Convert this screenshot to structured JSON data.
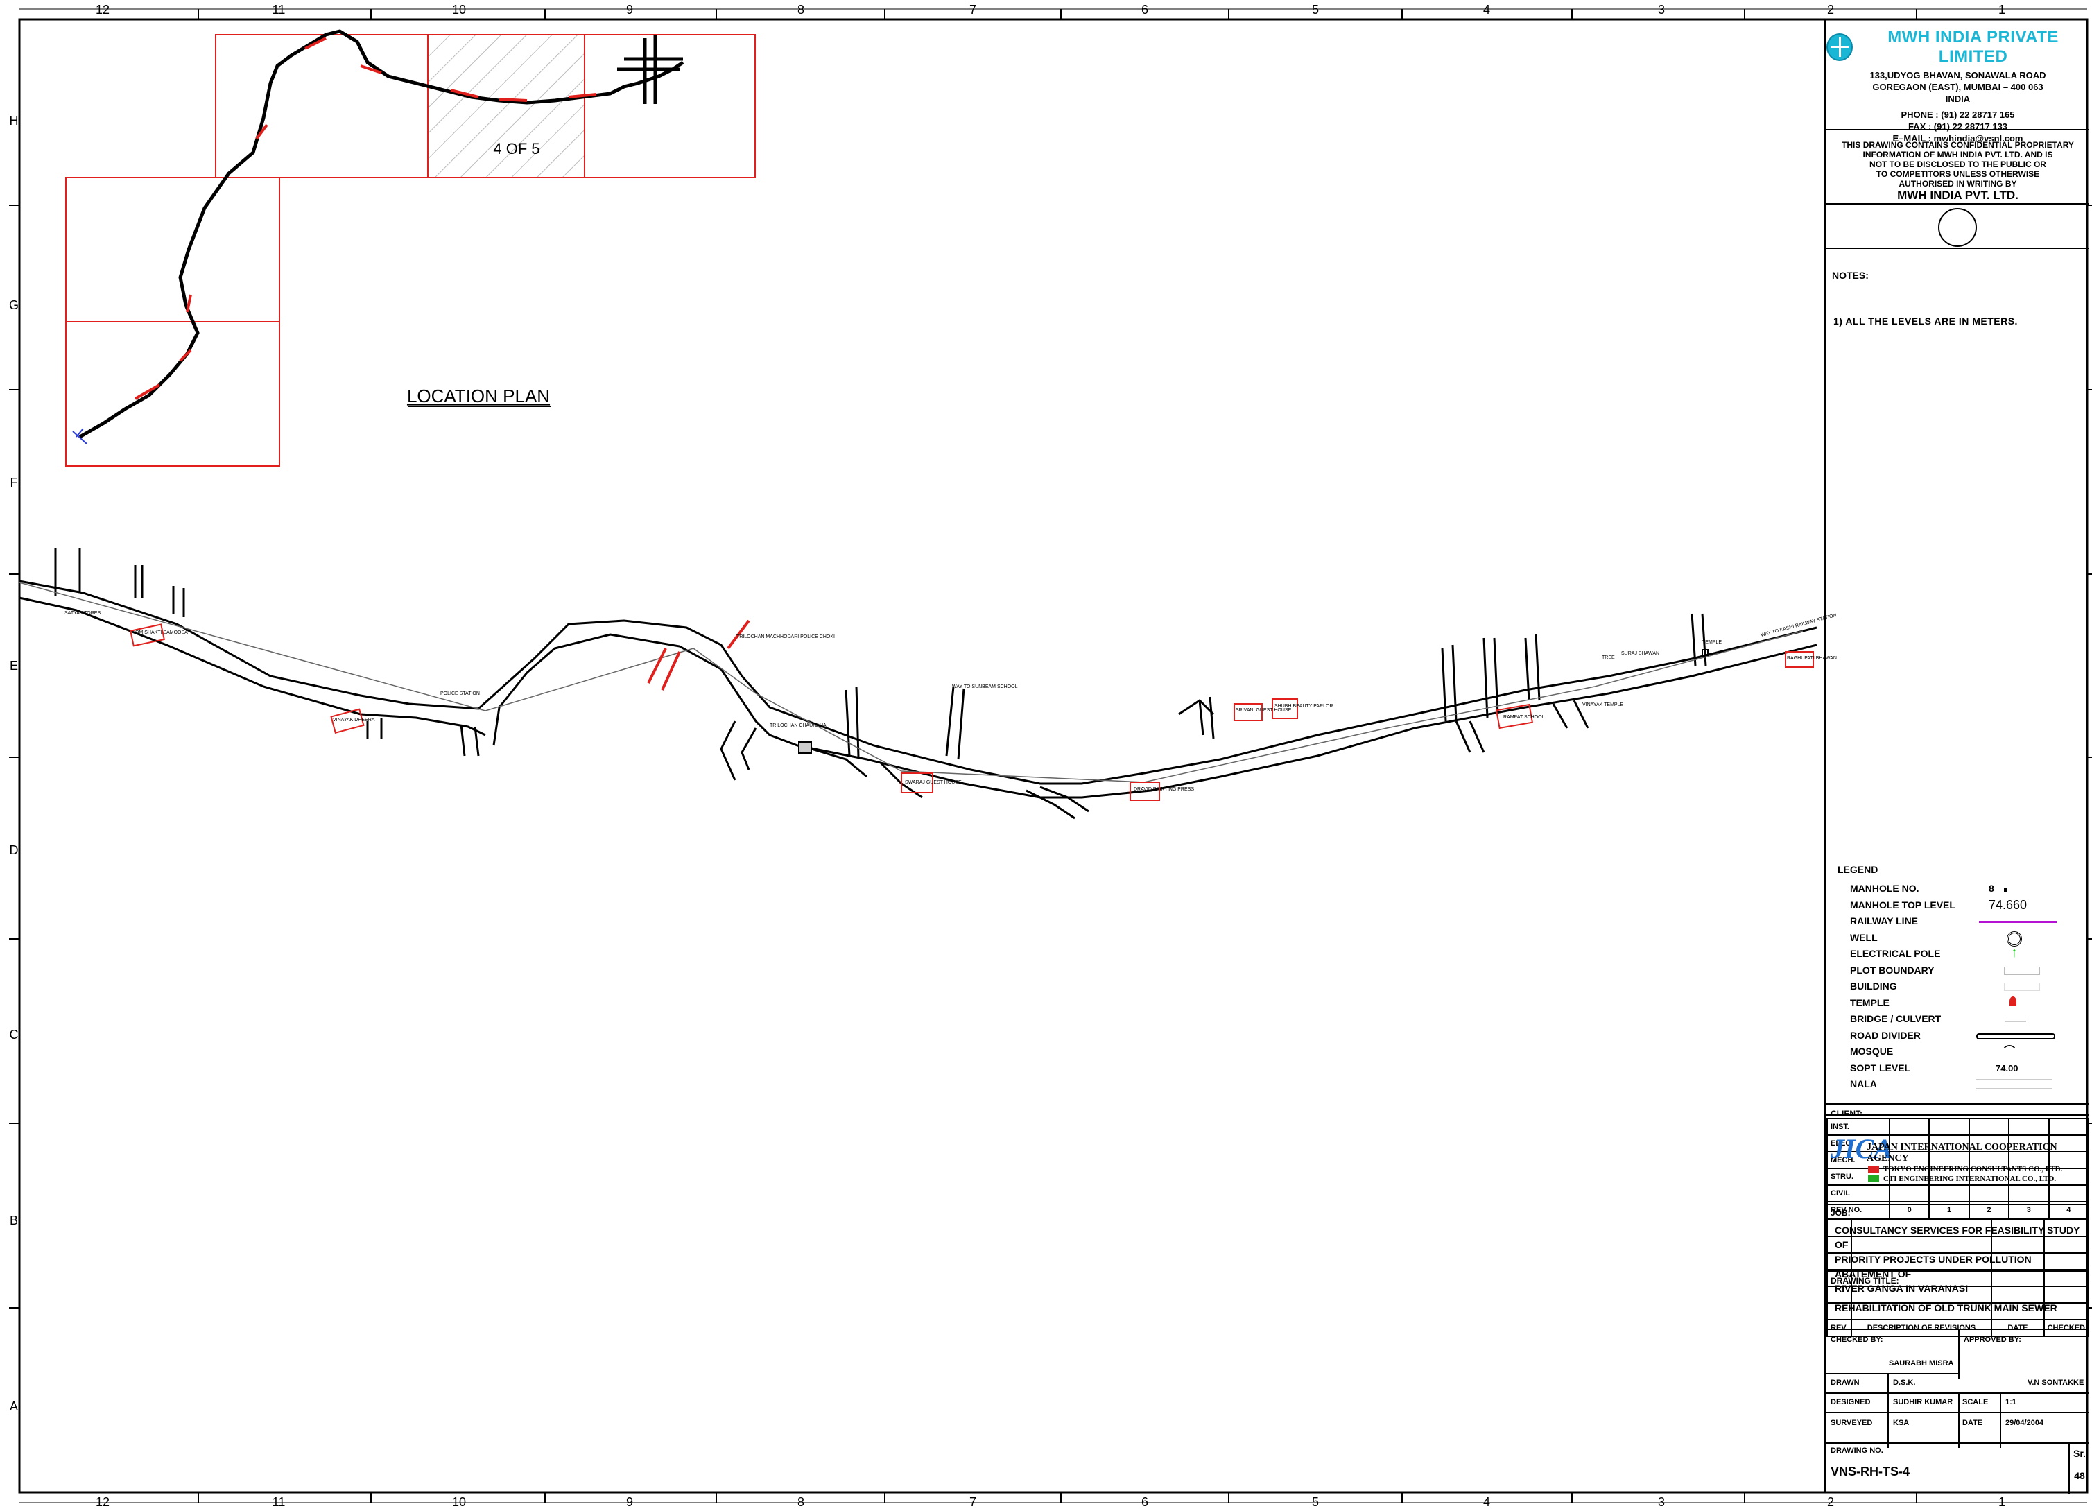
{
  "border": {
    "columns": [
      "12",
      "11",
      "10",
      "9",
      "8",
      "7",
      "6",
      "5",
      "4",
      "3",
      "2",
      "1"
    ],
    "rows": [
      "H",
      "G",
      "F",
      "E",
      "D",
      "C",
      "B",
      "A"
    ]
  },
  "location_plan": {
    "title": "LOCATION PLAN",
    "sheet_label": "4 OF 5"
  },
  "company": {
    "name": "MWH INDIA PRIVATE LIMITED",
    "address_lines": [
      "133,UDYOG BHAVAN, SONAWALA ROAD",
      "GOREGAON (EAST), MUMBAI – 400 063",
      "INDIA"
    ],
    "phone": "PHONE    : (91) 22 28717 165",
    "fax": "FAX    : (91) 22 28717 133",
    "email": "E–MAIL :  mwhindia@vsnl.com"
  },
  "confidential": {
    "lines": [
      "THIS DRAWING CONTAINS CONFIDENTIAL PROPRIETARY",
      "INFORMATION OF MWH INDIA PVT. LTD. AND IS",
      "NOT TO BE DISCLOSED TO THE PUBLIC OR",
      "TO COMPETITORS UNLESS OTHERWISE",
      "AUTHORISED IN WRITING BY"
    ],
    "company": "MWH INDIA PVT. LTD."
  },
  "notes": {
    "title": "NOTES:",
    "items": [
      "1)  ALL  THE  LEVELS  ARE  IN  METERS."
    ]
  },
  "legend": {
    "title": "LEGEND",
    "manhole_no_label": "MANHOLE  NO.",
    "manhole_no_value": "8",
    "manhole_top_label": "MANHOLE  TOP  LEVEL",
    "manhole_top_value": "74.660",
    "railway_line": "RAILWAY  LINE",
    "well": "WELL",
    "electrical_pole": "ELECTRICAL  POLE",
    "plot_boundary": "PLOT  BOUNDARY",
    "building": "BUILDING",
    "temple": "TEMPLE",
    "bridge": "BRIDGE  /  CULVERT",
    "road_divider": "ROAD  DIVIDER",
    "mosque": "MOSQUE",
    "sopt_level": "SOPT  LEVEL",
    "sopt_value": "74.00",
    "nala": "NALA"
  },
  "revisions": {
    "disciplines": [
      "INST.",
      "ELEC.",
      "MECH.",
      "STRU.",
      "CIVIL"
    ],
    "rev_no_label": "REV  NO.",
    "rev_nos": [
      "0",
      "1",
      "2",
      "3",
      "4"
    ],
    "footer": {
      "rev": "REV.",
      "description": "DESCRIPTION  OF  REVISIONS",
      "date": "DATE",
      "checked": "CHECKED"
    }
  },
  "client": {
    "label": "CLIENT:",
    "logo": "JICA",
    "agency": "JAPAN INTERNATIONAL COOPERATION AGENCY",
    "consultant1": "TOKYO ENGINEERING CONSULTANTS CO., LTD.",
    "consultant2": "CTI ENGINEERING INTERNATIONAL CO., LTD."
  },
  "job": {
    "label": "JOB:",
    "lines": [
      "CONSULTANCY SERVICES FOR FEASIBILITY STUDY OF",
      "PRIORITY PROJECTS UNDER POLLUTION ABATEMENT OF",
      "RIVER GANGA IN VARANASI"
    ]
  },
  "drawing_title": {
    "label": "DRAWING  TITLE:",
    "value": "REHABILITATION OF OLD TRUNK MAIN SEWER"
  },
  "signatures": {
    "checked_by_label": "CHECKED  BY:",
    "checked_by": "SAURABH  MISRA",
    "approved_by_label": "APPROVED  BY:",
    "approved_by": "V.N  SONTAKKE",
    "drawn_label": "DRAWN",
    "drawn": "D.S.K.",
    "designed_label": "DESIGNED",
    "designed": "SUDHIR  KUMAR",
    "scale_label": "SCALE",
    "scale": "1:1",
    "surveyed_label": "SURVEYED",
    "surveyed": "KSA",
    "date_label": "DATE",
    "date": "29/04/2004"
  },
  "drawing_no": {
    "label": "DRAWING  NO.",
    "value": "VNS-RH-TS-4",
    "sr_label": "Sr.",
    "sr_value": "48"
  },
  "map_labels": {
    "l1": "SATYA STORES",
    "l2": "OM SHAKTI SAMOOSA",
    "l3": "VINAYAK DHEERA",
    "l4": "TRILOCHAN MACHHODARI POLICE CHOKI",
    "l5": "TRILOCHAN CHAURAHA",
    "l6": "WAY TO SUNBEAM SCHOOL",
    "l7": "SWARAJ GUEST HOUSE",
    "l8": "DRAVID PRINTING PRESS",
    "l9": "SRIVANI GUEST HOUSE",
    "l10": "SHUBH BEAUTY PARLOR",
    "l11": "SURAJ BHAWAN",
    "l12": "RAMPAT SCHOOL",
    "l13": "TEMPLE",
    "l14": "WAY TO KASHI RAILWAY STATION",
    "l15": "RAGHUPATI BHAWAN",
    "l16": "POLICE STATION",
    "l17": "TREE",
    "l18": "VINAYAK TEMPLE"
  },
  "colors": {
    "red": "#e0201c",
    "magenta": "#b414d2",
    "cyan": "#19b6d6",
    "green": "#1bd11b"
  }
}
